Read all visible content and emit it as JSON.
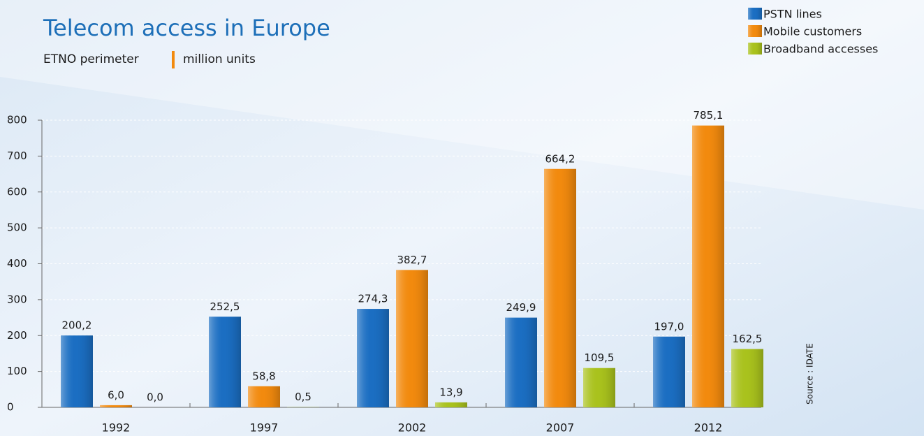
{
  "chart_data": {
    "type": "bar",
    "title": "Telecom access in Europe",
    "subtitle": [
      "ETNO perimeter",
      "million units"
    ],
    "source": "Source : IDATE",
    "categories": [
      "1992",
      "1997",
      "2002",
      "2007",
      "2012"
    ],
    "series": [
      {
        "name": "PSTN lines",
        "color": "#1b6ec2",
        "values": [
          200.2,
          252.5,
          274.3,
          249.9,
          197.0
        ],
        "value_labels": [
          "200,2",
          "252,5",
          "274,3",
          "249,9",
          "197,0"
        ]
      },
      {
        "name": "Mobile customers",
        "color": "#f28a0e",
        "values": [
          6.0,
          58.8,
          382.7,
          664.2,
          785.1
        ],
        "value_labels": [
          "6,0",
          "58,8",
          "382,7",
          "664,2",
          "785,1"
        ]
      },
      {
        "name": "Broadband accesses",
        "color": "#a9c21d",
        "values": [
          0.0,
          0.5,
          13.9,
          109.5,
          162.5
        ],
        "value_labels": [
          "0,0",
          "0,5",
          "13,9",
          "109,5",
          "162,5"
        ]
      }
    ],
    "ylim": [
      0,
      800
    ],
    "yticks": [
      0,
      100,
      200,
      300,
      400,
      500,
      600,
      700,
      800
    ],
    "grid": true,
    "legend": "top-right"
  }
}
